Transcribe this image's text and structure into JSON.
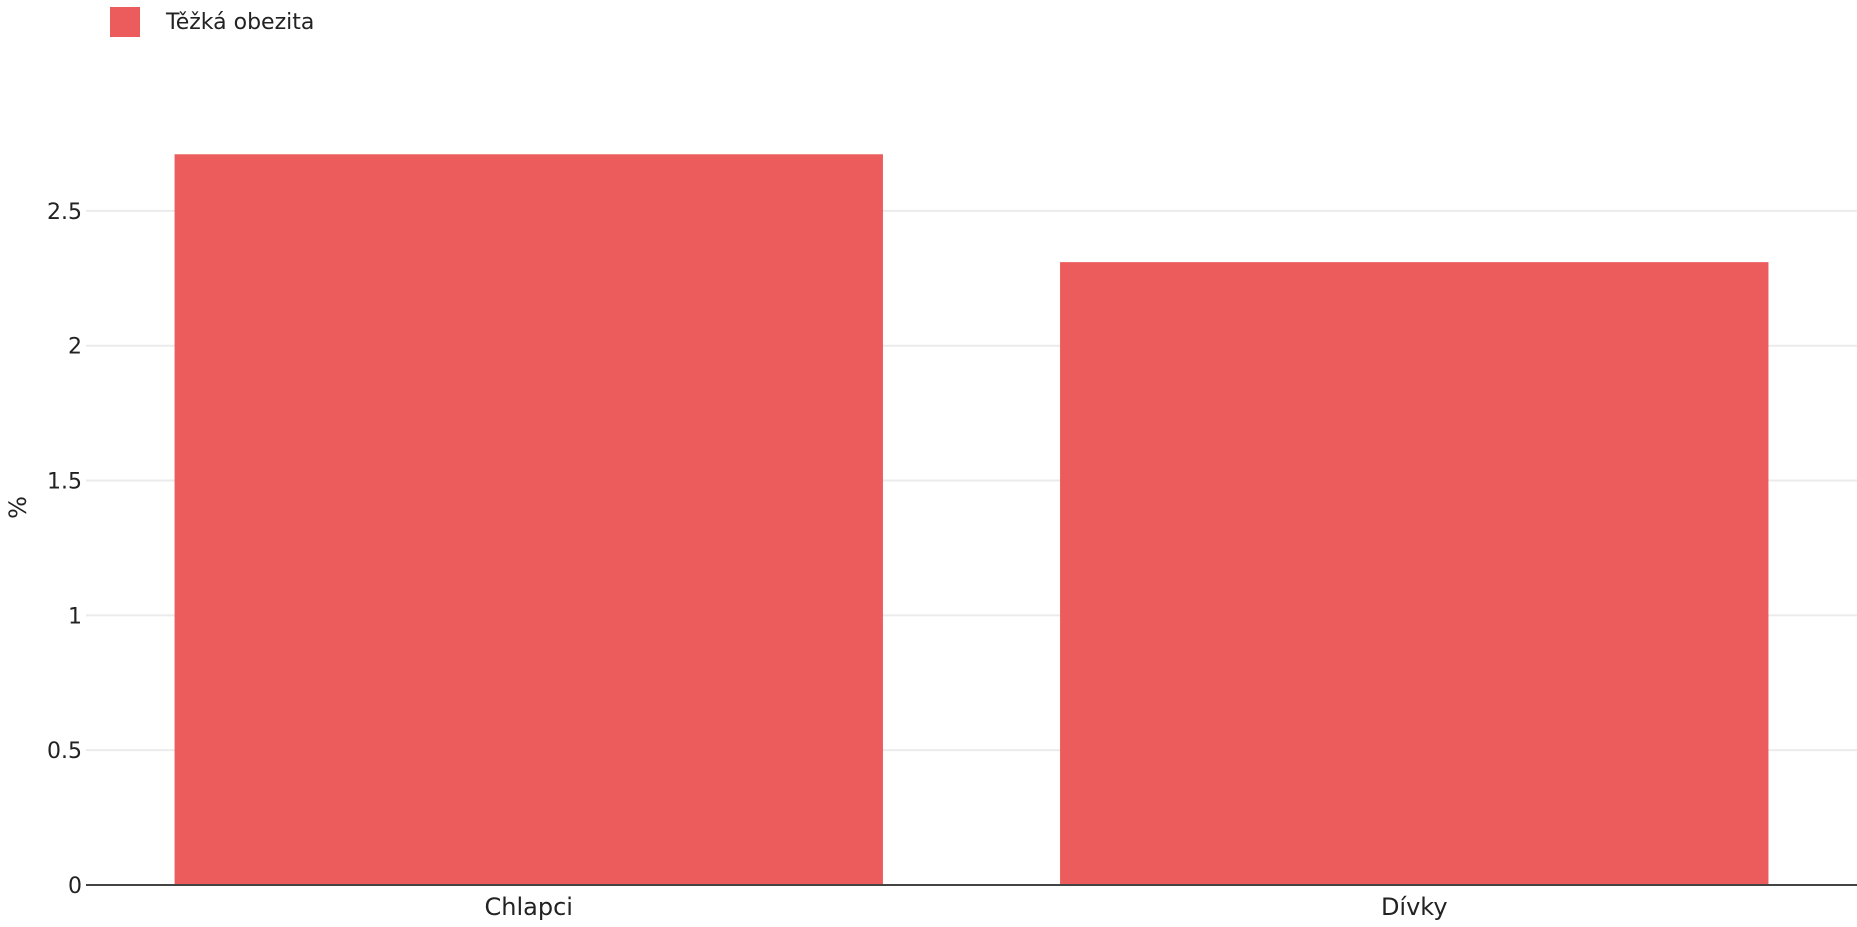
{
  "chart_data": {
    "type": "bar",
    "categories": [
      "Chlapci",
      "Dívky"
    ],
    "series": [
      {
        "name": "Těžká obezita",
        "values": [
          2.71,
          2.31
        ],
        "color": "#EC5C5C"
      }
    ],
    "title": "",
    "xlabel": "",
    "ylabel": "%",
    "ylim": [
      0,
      2.8
    ],
    "yticks": [
      {
        "value": 0,
        "label": "0"
      },
      {
        "value": 0.5,
        "label": "0.5"
      },
      {
        "value": 1,
        "label": "1"
      },
      {
        "value": 1.5,
        "label": "1.5"
      },
      {
        "value": 2,
        "label": "2"
      },
      {
        "value": 2.5,
        "label": "2.5"
      }
    ],
    "grid": true,
    "legend_position": "top-left",
    "colors": {
      "grid": "#EBEBEB",
      "axis": "#444444"
    }
  }
}
